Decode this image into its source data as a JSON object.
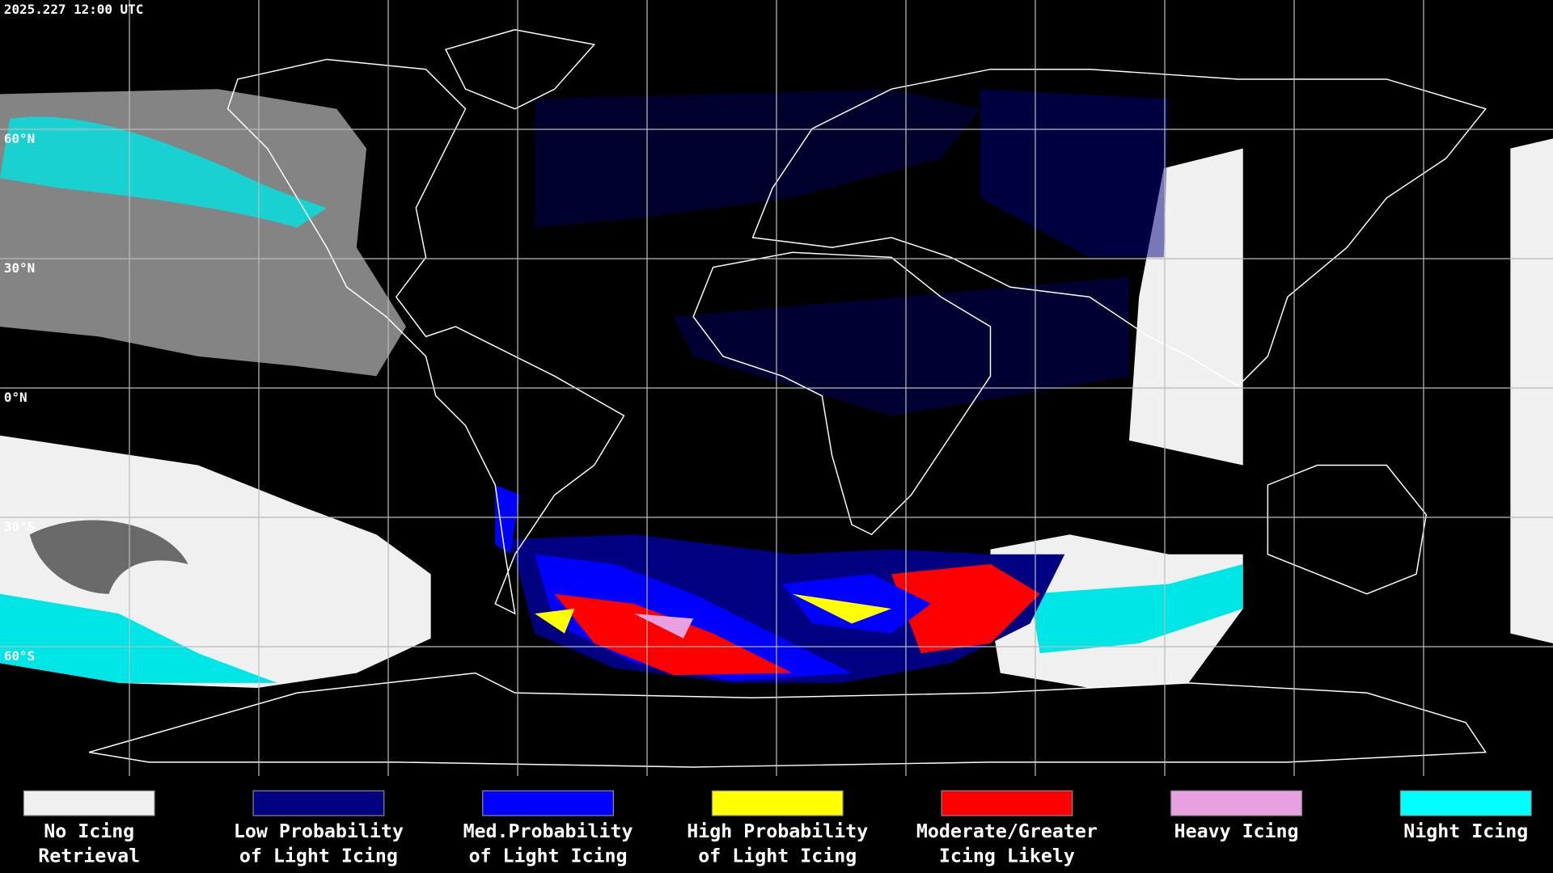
{
  "header": {
    "title": "2025.227 12:00 UTC"
  },
  "map": {
    "lat_labels": [
      "60°N",
      "30°N",
      "0°N",
      "30°S",
      "60°S"
    ]
  },
  "legend": {
    "items": [
      {
        "lines": [
          "No Icing",
          "Retrieval"
        ],
        "color": "#f0f0f0"
      },
      {
        "lines": [
          "Low Probability",
          "of Light Icing"
        ],
        "color": "#000080"
      },
      {
        "lines": [
          "Med.Probability",
          "of Light Icing"
        ],
        "color": "#0000ff"
      },
      {
        "lines": [
          "High Probability",
          "of Light Icing"
        ],
        "color": "#ffff00"
      },
      {
        "lines": [
          "Moderate/Greater",
          "Icing Likely"
        ],
        "color": "#ff0000"
      },
      {
        "lines": [
          "Heavy Icing"
        ],
        "color": "#e8a0e0"
      },
      {
        "lines": [
          "Night Icing"
        ],
        "color": "#00ffff"
      }
    ]
  }
}
